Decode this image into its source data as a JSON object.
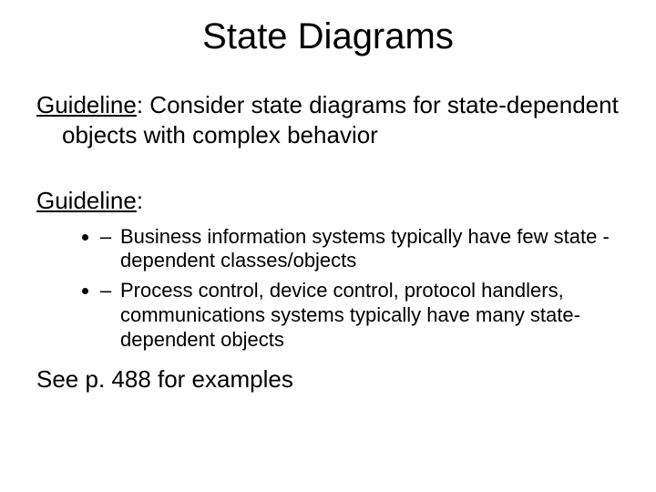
{
  "title": "State Diagrams",
  "g1": {
    "label": "Guideline",
    "text": ": Consider state diagrams for state-dependent objects with complex behavior"
  },
  "g2": {
    "label": "Guideline",
    "text": ":"
  },
  "bullets": {
    "b1": "Business information systems typically have few state -dependent classes/objects",
    "b2": "Process control, device control, protocol handlers, communications systems typically have many state-dependent objects"
  },
  "footer": "See p. 488 for examples"
}
